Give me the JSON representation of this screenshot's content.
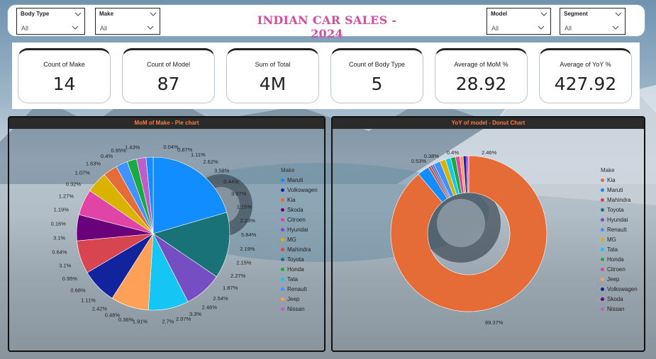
{
  "header": {
    "title": "INDIAN CAR SALES - 2024",
    "slicers": [
      {
        "label": "Body Type",
        "value": "All"
      },
      {
        "label": "Make",
        "value": "All"
      },
      {
        "label": "Model",
        "value": "All"
      },
      {
        "label": "Segment",
        "value": "All"
      }
    ]
  },
  "kpis": [
    {
      "label": "Count of Make",
      "value": "14"
    },
    {
      "label": "Count of Model",
      "value": "87"
    },
    {
      "label": "Sum of Total",
      "value": "4M"
    },
    {
      "label": "Count of Body Type",
      "value": "5"
    },
    {
      "label": "Average of MoM %",
      "value": "28.92"
    },
    {
      "label": "Average of YoY %",
      "value": "427.92"
    }
  ],
  "colors": {
    "title": "#d44ba0",
    "panel_title": "#ff7a3c",
    "Maruti": "#118DFF",
    "Volkswagen": "#12239E",
    "Kia": "#E66C37",
    "Skoda": "#6B007B",
    "Citroen": "#E044A7",
    "Hyundai": "#744EC2",
    "MG": "#D9B300",
    "Mahindra": "#D64550",
    "Toyota": "#197278",
    "Honda": "#1AAB40",
    "Tata": "#15C6F4",
    "Renault": "#4092FF",
    "Jeep": "#FFA058",
    "Nissan": "#BE5DC9"
  },
  "chart_data": [
    {
      "type": "pie",
      "title": "MoM of Make - Pie chart",
      "legend_title": "Make",
      "legend_position": "right",
      "legend": [
        "Maruti",
        "Volkswagen",
        "Kia",
        "Skoda",
        "Citroen",
        "Hyundai",
        "MG",
        "Mahindra",
        "Toyota",
        "Honda",
        "Tata",
        "Renault",
        "Jeep",
        "Nissan"
      ],
      "data_labels": [
        "0.04%",
        "0.87%",
        "1.11%",
        "2.62%",
        "3.58%",
        "0.44%",
        "3.97%",
        "1.15%",
        "2.23%",
        "5.84%",
        "2.19%",
        "2.15%",
        "2.27%",
        "1.87%",
        "2.54%",
        "2.46%",
        "3.3%",
        "2.07%",
        "2.7%",
        "1.91%",
        "0.36%",
        "0.48%",
        "2.42%",
        "1.11%",
        "0.68%",
        "0.95%",
        "3.1%",
        "0.64%",
        "3.1%",
        "0.16%",
        "1.19%",
        "1.27%",
        "0.32%",
        "1.07%",
        "1.63%",
        "0.4%",
        "0.95%",
        "1.43%"
      ],
      "slices": [
        {
          "make": "Maruti",
          "value": 20.5
        },
        {
          "make": "Toyota",
          "value": 14.0
        },
        {
          "make": "Hyundai",
          "value": 8.0
        },
        {
          "make": "Tata",
          "value": 8.5
        },
        {
          "make": "Jeep",
          "value": 8.0
        },
        {
          "make": "Volkswagen",
          "value": 7.5
        },
        {
          "make": "Mahindra",
          "value": 7.0
        },
        {
          "make": "Skoda",
          "value": 5.5
        },
        {
          "make": "Citroen",
          "value": 5.5
        },
        {
          "make": "MG",
          "value": 4.5
        },
        {
          "make": "Kia",
          "value": 3.0
        },
        {
          "make": "Renault",
          "value": 2.5
        },
        {
          "make": "Honda",
          "value": 2.0
        },
        {
          "make": "Nissan",
          "value": 2.0
        },
        {
          "make": "Maruti",
          "value": 1.5
        }
      ]
    },
    {
      "type": "pie",
      "title": "YoY of model - Donut Chart",
      "legend_title": "Make",
      "legend_position": "right",
      "legend": [
        "Kia",
        "Maruti",
        "Mahindra",
        "Toyota",
        "Hyundai",
        "Renault",
        "MG",
        "Tata",
        "Honda",
        "Citroen",
        "Jeep",
        "Volkswagen",
        "Skoda",
        "Nissan"
      ],
      "data_labels": [
        "89.37%",
        "2.46%",
        "0.53%",
        "0.38%",
        "0.4%"
      ],
      "slices": [
        {
          "make": "Kia",
          "value": 89.37
        },
        {
          "make": "Maruti",
          "value": 2.46
        },
        {
          "make": "Mahindra",
          "value": 0.53
        },
        {
          "make": "Toyota",
          "value": 0.38
        },
        {
          "make": "Hyundai",
          "value": 0.4
        },
        {
          "make": "Renault",
          "value": 1.4
        },
        {
          "make": "MG",
          "value": 1.2
        },
        {
          "make": "Tata",
          "value": 1.1
        },
        {
          "make": "Honda",
          "value": 1.0
        },
        {
          "make": "Citroen",
          "value": 0.9
        },
        {
          "make": "Jeep",
          "value": 0.7
        },
        {
          "make": "Volkswagen",
          "value": 0.6
        },
        {
          "make": "Skoda",
          "value": 0.3
        },
        {
          "make": "Nissan",
          "value": 0.26
        }
      ]
    }
  ]
}
